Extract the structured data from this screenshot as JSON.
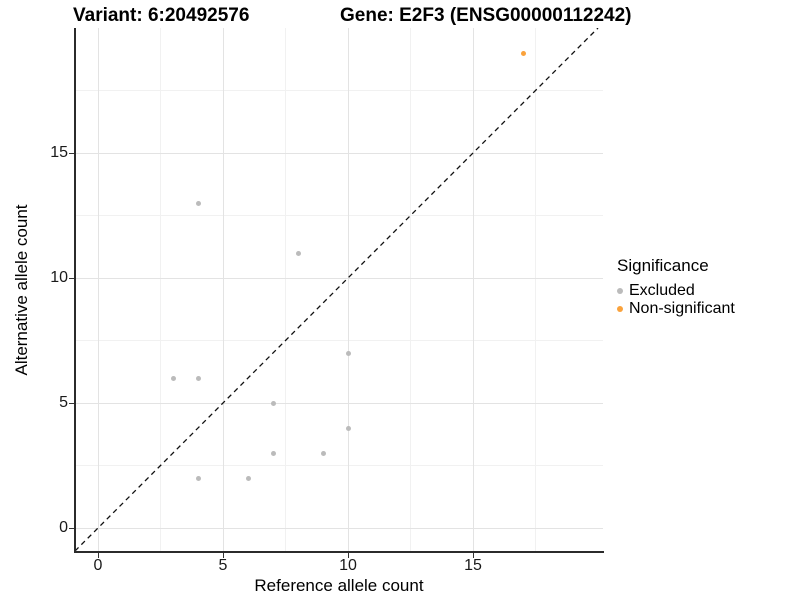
{
  "titles": {
    "variant": "Variant: 6:20492576",
    "gene": "Gene: E2F3 (ENSG00000112242)"
  },
  "chart_data": {
    "type": "scatter",
    "xlabel": "Reference allele count",
    "ylabel": "Alternative allele count",
    "xlim": [
      -1,
      20
    ],
    "ylim": [
      -1,
      20
    ],
    "x_ticks": [
      0,
      5,
      10,
      15
    ],
    "y_ticks": [
      0,
      5,
      10,
      15
    ],
    "x_minor_ticks": [
      2.5,
      7.5,
      12.5,
      17.5
    ],
    "y_minor_ticks": [
      2.5,
      7.5,
      12.5,
      17.5
    ],
    "grid": true,
    "reference_line": {
      "slope": 1,
      "intercept": 0,
      "style": "dashed",
      "color": "#111111"
    },
    "series": [
      {
        "name": "Excluded",
        "color": "#bbbbbb",
        "points": [
          [
            3,
            6
          ],
          [
            4,
            2
          ],
          [
            4,
            6
          ],
          [
            4,
            13
          ],
          [
            6,
            2
          ],
          [
            7,
            3
          ],
          [
            7,
            5
          ],
          [
            8,
            11
          ],
          [
            9,
            3
          ],
          [
            10,
            4
          ],
          [
            10,
            7
          ]
        ]
      },
      {
        "name": "Non-significant",
        "color": "#faa23c",
        "points": [
          [
            17,
            19
          ]
        ]
      }
    ],
    "legend": {
      "title": "Significance",
      "position": "right",
      "entries": [
        {
          "label": "Excluded",
          "color": "#bbbbbb"
        },
        {
          "label": "Non-significant",
          "color": "#faa23c"
        }
      ]
    }
  }
}
